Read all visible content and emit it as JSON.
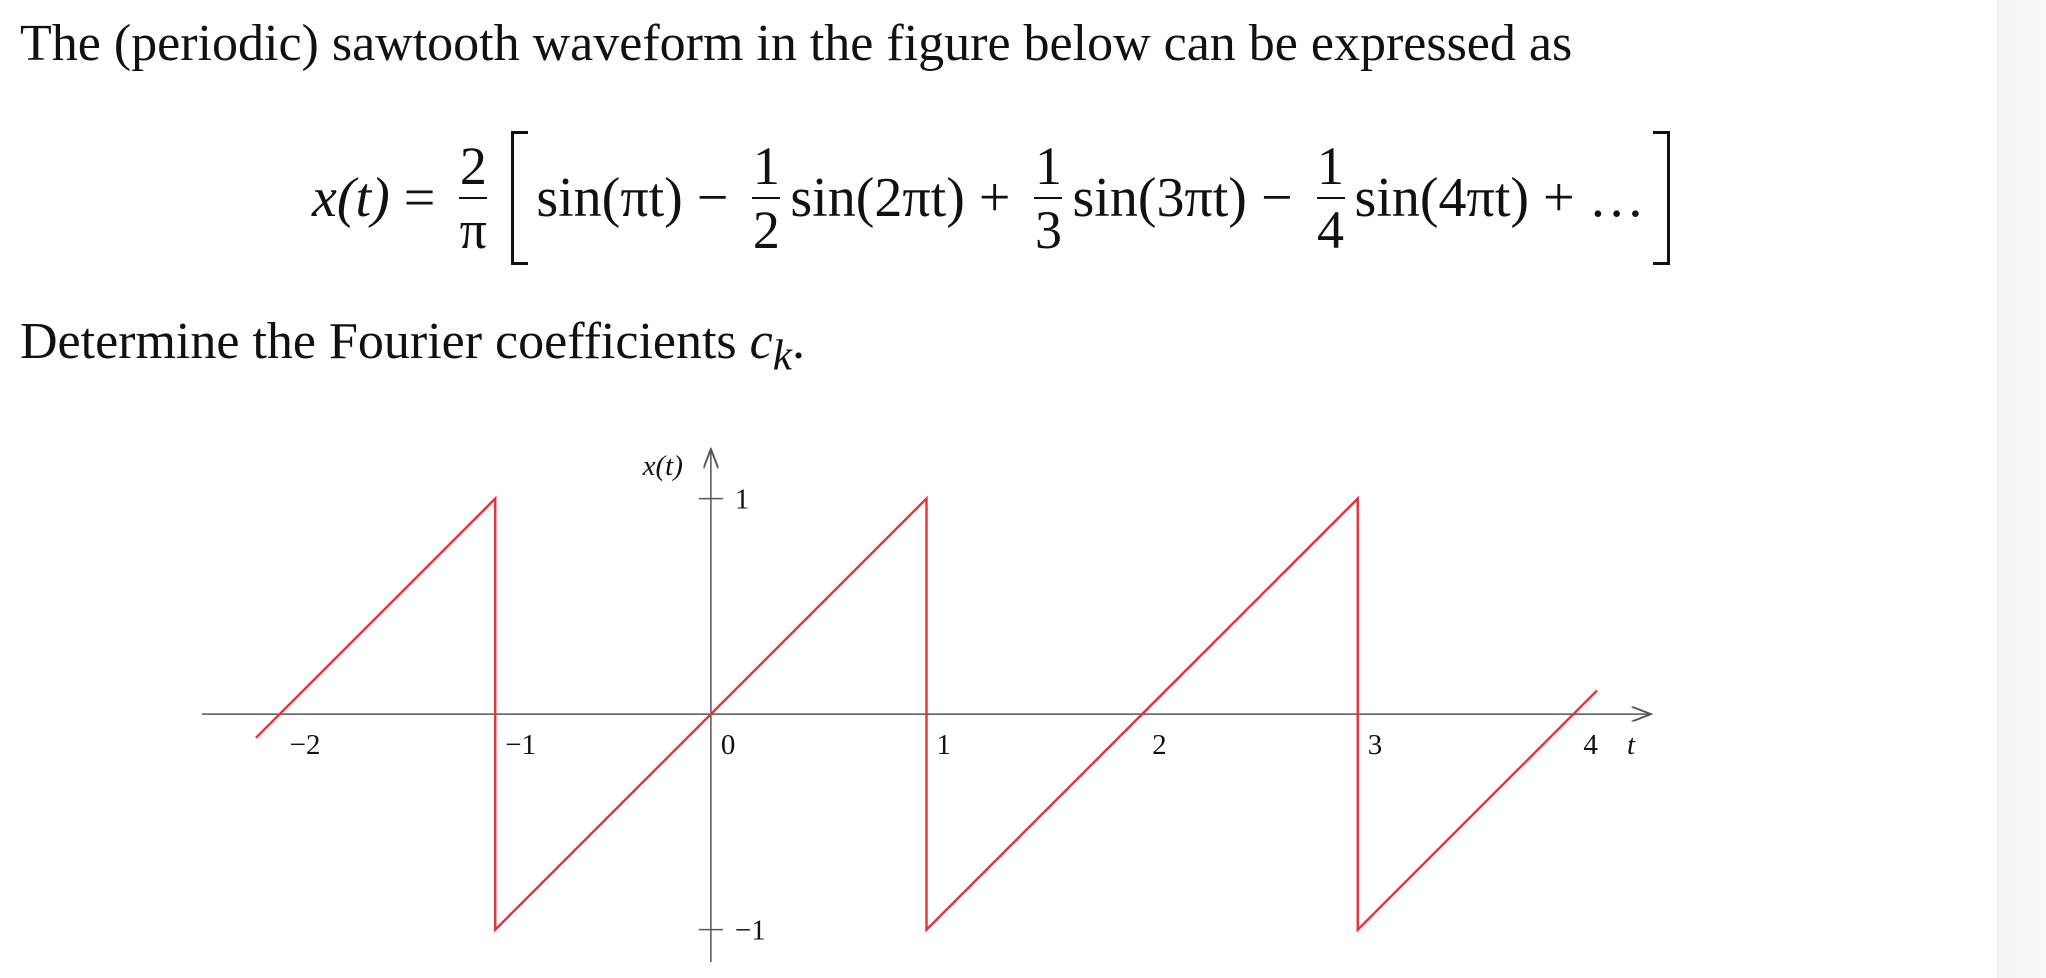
{
  "intro": "The (periodic) sawtooth waveform in the figure below can be expressed as",
  "formula": {
    "lhs": "x(t)",
    "eq": "=",
    "prefactor": {
      "num": "2",
      "den": "π"
    },
    "terms": [
      {
        "text": "sin(πt)"
      },
      {
        "op": "−",
        "num": "1",
        "den": "2",
        "text": "sin(2πt)"
      },
      {
        "op": "+",
        "num": "1",
        "den": "3",
        "text": "sin(3πt)"
      },
      {
        "op": "−",
        "num": "1",
        "den": "4",
        "text": "sin(4πt)"
      },
      {
        "op": "+",
        "text": "…"
      }
    ]
  },
  "question": {
    "text": "Determine the Fourier coefficients",
    "symbol": "c",
    "subscript": "k",
    "end": "."
  },
  "chart_data": {
    "type": "line",
    "x_label": "t",
    "y_label": "x(t)",
    "x": [
      -2.11,
      -1,
      -1,
      1,
      1,
      3,
      3,
      4.11
    ],
    "values": [
      -0.11,
      1,
      -1,
      1,
      -1,
      1,
      -1,
      0.11
    ],
    "color": "#e8303a",
    "grid": false,
    "xlim": [
      -2.36,
      4.36
    ],
    "ylim": [
      -1.15,
      1.23
    ],
    "xticks": [
      {
        "value": -2,
        "label": "−2"
      },
      {
        "value": -1,
        "label": "−1"
      },
      0,
      1,
      2,
      3,
      4
    ],
    "yticks": [
      {
        "value": -1,
        "label": "−1"
      },
      1
    ]
  }
}
